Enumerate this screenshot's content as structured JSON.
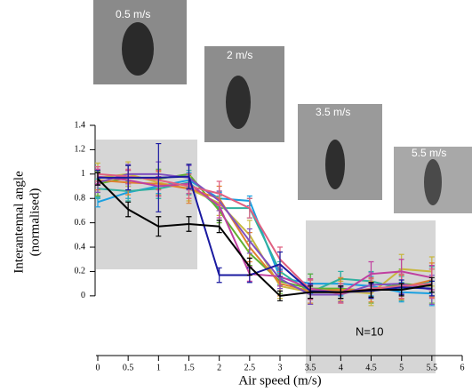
{
  "chart_data": {
    "type": "line",
    "y_label_lines": [
      "Interantennal angle",
      "(normalised)"
    ],
    "x_label": "Air speed (m/s)",
    "annotation": "N=10",
    "photo_labels": [
      "0.5 m/s",
      "2 m/s",
      "3.5 m/s",
      "5.5 m/s"
    ],
    "x": [
      0,
      0.5,
      1,
      1.5,
      2,
      2.5,
      3,
      3.5,
      4,
      4.5,
      5,
      5.5
    ],
    "xlim": [
      0,
      6
    ],
    "xticks": [
      0,
      0.5,
      1,
      1.5,
      2,
      2.5,
      3,
      3.5,
      4,
      4.5,
      5,
      5.5,
      6
    ],
    "ylim": [
      -0.49,
      1.4
    ],
    "yticks": [
      0,
      0.2,
      0.4,
      0.6,
      0.8,
      1,
      1.2,
      1.4
    ],
    "series": [
      {
        "color": "#1aa0e0",
        "values": [
          0.77,
          0.85,
          0.9,
          0.95,
          0.8,
          0.78,
          0.15,
          0.1,
          0.1,
          0.08,
          0.03,
          0.02
        ],
        "errors": [
          0.04,
          0.05,
          0.06,
          0.06,
          0.05,
          0.04,
          0.06,
          0.08,
          0.1,
          0.08,
          0.08,
          0.1
        ]
      },
      {
        "color": "#30b0a0",
        "values": [
          0.88,
          0.86,
          0.88,
          0.93,
          0.72,
          0.72,
          0.2,
          0.03,
          0.14,
          0.12,
          0.06,
          0.12
        ],
        "errors": [
          0.08,
          0.08,
          0.08,
          0.1,
          0.1,
          0.08,
          0.08,
          0.1,
          0.06,
          0.08,
          0.1,
          0.12
        ]
      },
      {
        "color": "#60b030",
        "values": [
          0.92,
          0.97,
          0.96,
          1.0,
          0.7,
          0.35,
          0.12,
          0.06,
          0.06,
          0.04,
          0.1,
          0.08
        ],
        "errors": [
          0.1,
          0.1,
          0.08,
          0.08,
          0.1,
          0.1,
          0.1,
          0.12,
          0.08,
          0.1,
          0.12,
          0.14
        ]
      },
      {
        "color": "#c8b840",
        "values": [
          0.97,
          1.0,
          0.93,
          0.88,
          0.76,
          0.5,
          0.08,
          0.03,
          0.04,
          0.02,
          0.22,
          0.2
        ],
        "errors": [
          0.12,
          0.1,
          0.1,
          0.1,
          0.1,
          0.12,
          0.1,
          0.1,
          0.08,
          0.1,
          0.12,
          0.12
        ]
      },
      {
        "color": "#e08030",
        "values": [
          0.95,
          0.93,
          0.92,
          0.88,
          0.8,
          0.4,
          0.1,
          0.04,
          0.05,
          0.05,
          0.07,
          0.13
        ],
        "errors": [
          0.08,
          0.1,
          0.1,
          0.12,
          0.1,
          0.12,
          0.1,
          0.1,
          0.1,
          0.1,
          0.1,
          0.14
        ]
      },
      {
        "color": "#8050c0",
        "values": [
          0.93,
          1.0,
          1.0,
          0.97,
          0.78,
          0.45,
          0.14,
          0.01,
          0.01,
          0.09,
          0.1,
          0.05
        ],
        "errors": [
          0.08,
          0.08,
          0.1,
          0.1,
          0.08,
          0.1,
          0.08,
          0.08,
          0.06,
          0.1,
          0.08,
          0.12
        ]
      },
      {
        "color": "#c040a0",
        "values": [
          0.98,
          0.95,
          0.9,
          0.92,
          0.74,
          0.18,
          0.16,
          0.06,
          0.02,
          0.18,
          0.2,
          0.15
        ],
        "errors": [
          0.06,
          0.08,
          0.08,
          0.08,
          0.1,
          0.06,
          0.08,
          0.08,
          0.08,
          0.1,
          0.1,
          0.1
        ]
      },
      {
        "color": "#e06080",
        "values": [
          1.0,
          0.98,
          0.95,
          0.9,
          0.84,
          0.72,
          0.3,
          0.05,
          0.02,
          0.06,
          0.08,
          0.1
        ],
        "errors": [
          0.06,
          0.06,
          0.08,
          0.1,
          0.1,
          0.08,
          0.1,
          0.08,
          0.08,
          0.08,
          0.1,
          0.12
        ]
      },
      {
        "color": "#1a1aa0",
        "values": [
          0.97,
          0.97,
          0.97,
          0.98,
          0.17,
          0.17,
          0.26,
          0.04,
          0.03,
          0.04,
          0.07,
          0.06
        ],
        "errors": [
          0.06,
          0.1,
          0.28,
          0.1,
          0.06,
          0.06,
          0.1,
          0.06,
          0.05,
          0.06,
          0.06,
          0.06
        ]
      },
      {
        "color": "#000000",
        "values": [
          0.96,
          0.71,
          0.57,
          0.59,
          0.57,
          0.24,
          0.0,
          0.03,
          0.03,
          0.05,
          0.05,
          0.09
        ],
        "errors": [
          0.05,
          0.06,
          0.08,
          0.06,
          0.05,
          0.07,
          0.04,
          0.05,
          0.05,
          0.06,
          0.05,
          0.06
        ]
      }
    ]
  }
}
